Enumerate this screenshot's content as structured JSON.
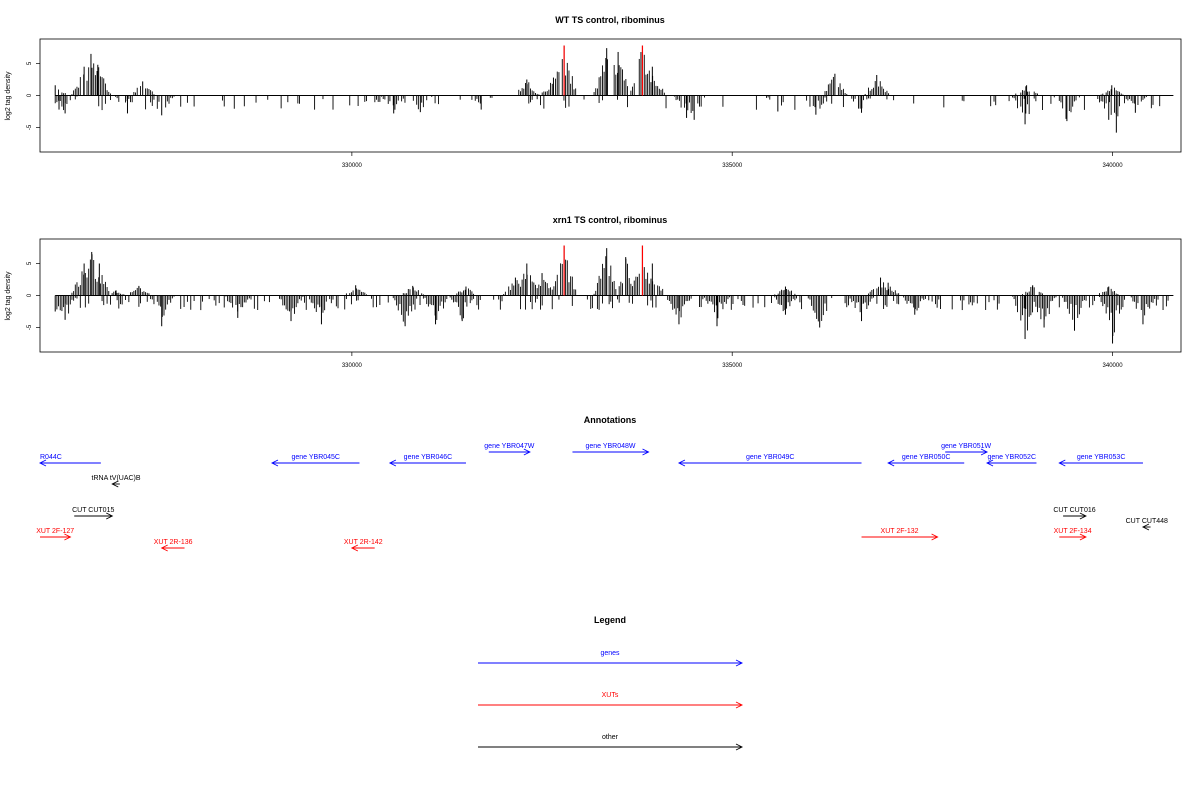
{
  "chart_data": [
    {
      "type": "bar",
      "title": "WT TS control, ribominus",
      "ylabel": "log2 tag density",
      "xlim": [
        325900,
        340900
      ],
      "ylim": [
        -8.2,
        8.2
      ],
      "xticks": [
        330000,
        335000,
        340000
      ],
      "yticks": [
        -5,
        0,
        5
      ],
      "baseline": 0,
      "series": [
        {
          "color": "#000000",
          "x_start": 326100,
          "x_end": 340800
        },
        {
          "color": "#ff0000",
          "x": [
            332790,
            333820
          ]
        }
      ],
      "peaks": [
        [
          326100,
          1.6
        ],
        [
          326480,
          4.5
        ],
        [
          326570,
          6.5
        ],
        [
          326660,
          4.8
        ],
        [
          327250,
          2.2
        ],
        [
          330100,
          0
        ],
        [
          332300,
          2.5
        ],
        [
          332650,
          2.8
        ],
        [
          332790,
          7.8
        ],
        [
          333350,
          7.4
        ],
        [
          333500,
          6.8
        ],
        [
          333820,
          7.8
        ],
        [
          333950,
          4.5
        ],
        [
          336350,
          3.4
        ],
        [
          336900,
          3.2
        ],
        [
          338870,
          1.6
        ],
        [
          339990,
          1.6
        ]
      ],
      "troughs": [
        [
          326150,
          -2.2
        ],
        [
          326230,
          -2.8
        ],
        [
          327050,
          -2.8
        ],
        [
          327500,
          -3.1
        ],
        [
          330550,
          -2.8
        ],
        [
          330900,
          -2.6
        ],
        [
          331700,
          -2.2
        ],
        [
          334400,
          -3.5
        ],
        [
          334500,
          -3.8
        ],
        [
          335600,
          -2.5
        ],
        [
          336100,
          -3
        ],
        [
          336700,
          -2.7
        ],
        [
          338850,
          -4.5
        ],
        [
          339400,
          -4
        ],
        [
          339950,
          -3.8
        ],
        [
          340050,
          -5.8
        ],
        [
          340300,
          -2.7
        ]
      ]
    },
    {
      "type": "bar",
      "title": "xrn1 TS control, ribominus",
      "ylabel": "log2 tag density",
      "xlim": [
        325900,
        340900
      ],
      "ylim": [
        -8.2,
        8.2
      ],
      "xticks": [
        330000,
        335000,
        340000
      ],
      "yticks": [
        -5,
        0,
        5
      ],
      "baseline": 0,
      "series": [
        {
          "color": "#000000",
          "x_start": 326100,
          "x_end": 340800
        },
        {
          "color": "#ff0000",
          "x": [
            332790,
            333820
          ]
        }
      ],
      "peaks": [
        [
          326480,
          5
        ],
        [
          326580,
          6.8
        ],
        [
          326680,
          5
        ],
        [
          326900,
          0.8
        ],
        [
          327200,
          1.5
        ],
        [
          330050,
          1.6
        ],
        [
          330800,
          1.5
        ],
        [
          331500,
          1.4
        ],
        [
          332150,
          2.8
        ],
        [
          332300,
          5
        ],
        [
          332500,
          3.5
        ],
        [
          332790,
          7.8
        ],
        [
          333350,
          7.4
        ],
        [
          333600,
          6
        ],
        [
          333820,
          7.8
        ],
        [
          333950,
          5
        ],
        [
          335700,
          1.4
        ],
        [
          336950,
          2.8
        ],
        [
          337050,
          2
        ],
        [
          338950,
          1.6
        ],
        [
          339950,
          1.4
        ]
      ],
      "troughs": [
        [
          326100,
          -2.5
        ],
        [
          326230,
          -3.8
        ],
        [
          327500,
          -4.8
        ],
        [
          328500,
          -3.5
        ],
        [
          329200,
          -4
        ],
        [
          329600,
          -4.5
        ],
        [
          330700,
          -4.8
        ],
        [
          331100,
          -4.5
        ],
        [
          331450,
          -4
        ],
        [
          334300,
          -4.5
        ],
        [
          334800,
          -4.8
        ],
        [
          335700,
          -3
        ],
        [
          336150,
          -5
        ],
        [
          336700,
          -4
        ],
        [
          337400,
          -3
        ],
        [
          338850,
          -6.8
        ],
        [
          339100,
          -5
        ],
        [
          339500,
          -5.5
        ],
        [
          340000,
          -7.5
        ],
        [
          340400,
          -4.5
        ]
      ]
    }
  ],
  "annotations": {
    "title": "Annotations",
    "features": [
      {
        "label": "R044C",
        "color": "#0000ff",
        "x1": 325900,
        "x2": 326700,
        "dir": "left",
        "row": 1,
        "label_pos": "left"
      },
      {
        "label": "gene YBR045C",
        "color": "#0000ff",
        "x1": 328950,
        "x2": 330100,
        "dir": "left",
        "row": 1
      },
      {
        "label": "gene YBR046C",
        "color": "#0000ff",
        "x1": 330500,
        "x2": 331500,
        "dir": "left",
        "row": 1
      },
      {
        "label": "gene YBR047W",
        "color": "#0000ff",
        "x1": 331800,
        "x2": 332340,
        "dir": "right",
        "row": 0
      },
      {
        "label": "gene YBR048W",
        "color": "#0000ff",
        "x1": 332900,
        "x2": 333900,
        "dir": "right",
        "row": 0
      },
      {
        "label": "gene YBR049C",
        "color": "#0000ff",
        "x1": 334300,
        "x2": 336700,
        "dir": "left",
        "row": 1
      },
      {
        "label": "gene YBR050C",
        "color": "#0000ff",
        "x1": 337050,
        "x2": 338050,
        "dir": "left",
        "row": 1
      },
      {
        "label": "gene YBR051W",
        "color": "#0000ff",
        "x1": 337800,
        "x2": 338350,
        "dir": "right",
        "row": 0
      },
      {
        "label": "gene YBR052C",
        "color": "#0000ff",
        "x1": 338350,
        "x2": 339000,
        "dir": "left",
        "row": 1
      },
      {
        "label": "gene YBR053C",
        "color": "#0000ff",
        "x1": 339300,
        "x2": 340400,
        "dir": "left",
        "row": 1
      },
      {
        "label": "tRNA tV(UAC)B",
        "color": "#000000",
        "x1": 326850,
        "x2": 326950,
        "dir": "left",
        "row": 2
      },
      {
        "label": "CUT CUT015",
        "color": "#000000",
        "x1": 326350,
        "x2": 326850,
        "dir": "right",
        "row": 3
      },
      {
        "label": "CUT CUT016",
        "color": "#000000",
        "x1": 339350,
        "x2": 339650,
        "dir": "right",
        "row": 3
      },
      {
        "label": "CUT CUT448",
        "color": "#000000",
        "x1": 340400,
        "x2": 340500,
        "dir": "left",
        "row": 4
      },
      {
        "label": "XUT 2F-127",
        "color": "#ff0000",
        "x1": 325900,
        "x2": 326300,
        "dir": "right",
        "row": 5
      },
      {
        "label": "XUT 2R-136",
        "color": "#ff0000",
        "x1": 327500,
        "x2": 327800,
        "dir": "left",
        "row": 6
      },
      {
        "label": "XUT 2R-142",
        "color": "#ff0000",
        "x1": 330000,
        "x2": 330300,
        "dir": "left",
        "row": 6
      },
      {
        "label": "XUT 2F-132",
        "color": "#ff0000",
        "x1": 336700,
        "x2": 337700,
        "dir": "right",
        "row": 5
      },
      {
        "label": "XUT 2F-134",
        "color": "#ff0000",
        "x1": 339300,
        "x2": 339650,
        "dir": "right",
        "row": 5
      }
    ]
  },
  "legend": {
    "title": "Legend",
    "items": [
      {
        "label": "genes",
        "color": "#0000ff"
      },
      {
        "label": "XUTs",
        "color": "#ff0000"
      },
      {
        "label": "other",
        "color": "#000000"
      }
    ]
  }
}
